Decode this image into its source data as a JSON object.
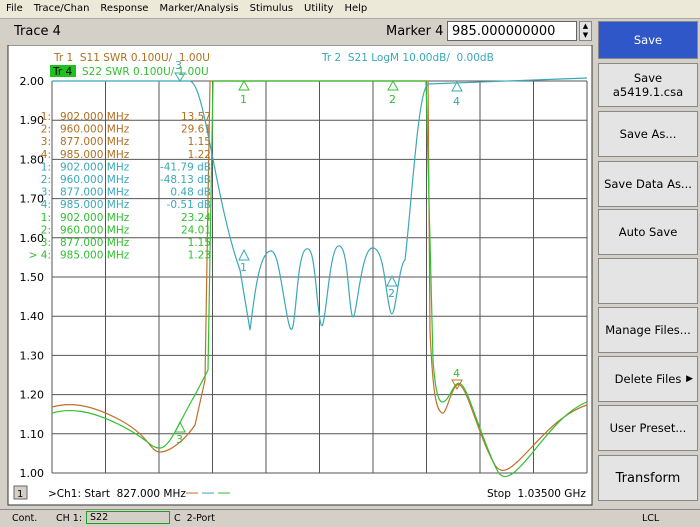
{
  "menu": [
    "File",
    "Trace/Chan",
    "Response",
    "Marker/Analysis",
    "Stimulus",
    "Utility",
    "Help"
  ],
  "toolbar": {
    "active_trace": "Trace 4",
    "marker_label": "Marker 4",
    "marker_value": "985.000000000 MHz"
  },
  "softkeys": [
    "Save",
    "Save",
    "a5419.1.csa",
    "Save As...",
    "Save Data As...",
    "Auto Save",
    "Manage Files...",
    "Delete Files",
    "User Preset...",
    "Transform"
  ],
  "chart": {
    "trace_headers": [
      "Tr 1  S11 SWR 0.100U/  1.00U",
      "Tr 4",
      "S22 SWR 0.100U/  1.00U",
      "Tr 2  S21 LogM 10.00dB/  0.00dB"
    ],
    "y_labels": [
      "2.00",
      "1.90",
      "1.80",
      "1.70",
      "1.60",
      "1.50",
      "1.40",
      "1.30",
      "1.20",
      "1.10",
      "1.00"
    ],
    "markers": [
      [
        "1:",
        "902.000 MHz",
        "13.57"
      ],
      [
        "2:",
        "960.000 MHz",
        "29.61"
      ],
      [
        "3:",
        "877.000 MHz",
        "1.15"
      ],
      [
        "4:",
        "985.000 MHz",
        "1.22"
      ],
      [
        "1:",
        "902.000 MHz",
        "-41.79 dB"
      ],
      [
        "2:",
        "960.000 MHz",
        "-48.13 dB"
      ],
      [
        "3:",
        "877.000 MHz",
        "0.48 dB"
      ],
      [
        "4:",
        "985.000 MHz",
        "-0.51 dB"
      ],
      [
        "1:",
        "902.000 MHz",
        "23.24"
      ],
      [
        "2:",
        "960.000 MHz",
        "24.01"
      ],
      [
        "3:",
        "877.000 MHz",
        "1.15"
      ],
      [
        "> 4:",
        "985.000 MHz",
        "1.23"
      ]
    ],
    "marker_flags": [
      "3",
      "1",
      "2",
      "4",
      "1",
      "2",
      "3",
      "4"
    ],
    "channel": "1",
    "start": ">Ch1: Start  827.000 MHz",
    "stop": "Stop  1.03500 GHz"
  },
  "status_bar": [
    "Cont.",
    "CH 1:",
    "S22",
    "C  2-Port",
    "LCL"
  ]
}
